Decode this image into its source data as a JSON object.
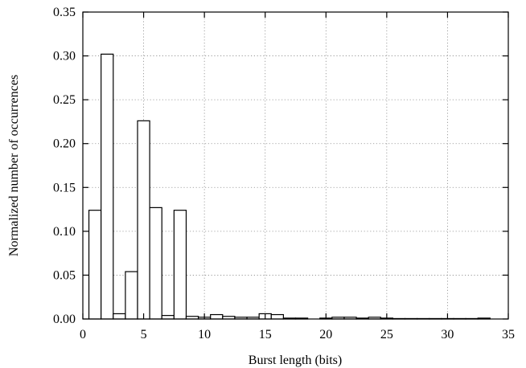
{
  "chart_data": {
    "type": "bar",
    "xlabel": "Burst length (bits)",
    "ylabel": "Normalized number of occurrences",
    "xlim": [
      0,
      35
    ],
    "ylim": [
      0,
      0.35
    ],
    "grid": true,
    "legend": "none",
    "bar_width": 1,
    "x_ticks": [
      "0",
      "5",
      "10",
      "15",
      "20",
      "25",
      "30",
      "35"
    ],
    "x_tick_values": [
      0,
      5,
      10,
      15,
      20,
      25,
      30,
      35
    ],
    "y_ticks": [
      "0.00",
      "0.05",
      "0.10",
      "0.15",
      "0.20",
      "0.25",
      "0.30",
      "0.35"
    ],
    "y_tick_values": [
      0,
      0.05,
      0.1,
      0.15,
      0.2,
      0.25,
      0.3,
      0.35
    ],
    "x": [
      1,
      2,
      3,
      4,
      5,
      6,
      7,
      8,
      9,
      10,
      11,
      12,
      13,
      14,
      15,
      16,
      17,
      18,
      19,
      20,
      21,
      22,
      23,
      24,
      25,
      26,
      27,
      28,
      29,
      30,
      31,
      32,
      33
    ],
    "values": [
      0.124,
      0.302,
      0.006,
      0.054,
      0.226,
      0.127,
      0.004,
      0.124,
      0.003,
      0.002,
      0.005,
      0.003,
      0.002,
      0.002,
      0.006,
      0.005,
      0.001,
      0.001,
      0.0,
      0.001,
      0.002,
      0.002,
      0.001,
      0.002,
      0.001,
      0.0005,
      0.0005,
      0.0005,
      0.0005,
      0.0005,
      0.0005,
      0.0005,
      0.001
    ]
  }
}
